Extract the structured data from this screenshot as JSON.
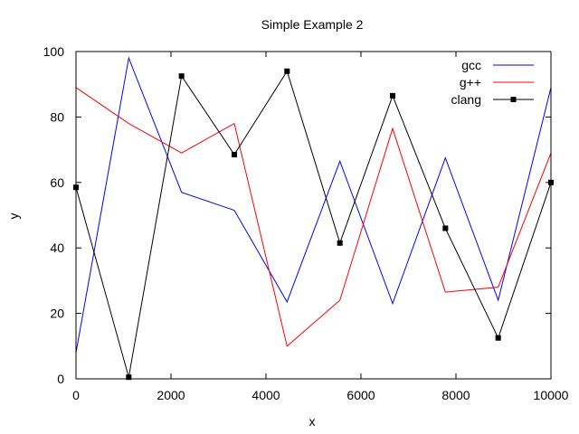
{
  "chart_data": {
    "type": "line",
    "title": "Simple Example 2",
    "xlabel": "x",
    "ylabel": "y",
    "xlim": [
      0,
      10000
    ],
    "ylim": [
      0,
      100
    ],
    "xticks": [
      0,
      2000,
      4000,
      6000,
      8000,
      10000
    ],
    "yticks": [
      0,
      20,
      40,
      60,
      80,
      100
    ],
    "grid": false,
    "legend_position": "top-right",
    "x": [
      0,
      1111,
      2222,
      3333,
      4444,
      5556,
      6667,
      7778,
      8889,
      10000
    ],
    "series": [
      {
        "name": "gcc",
        "color": "#0000ff",
        "marker": "none",
        "values": [
          8,
          98,
          57,
          51.5,
          23.5,
          66.5,
          23,
          67.5,
          24,
          89
        ]
      },
      {
        "name": "g++",
        "color": "#ff0000",
        "marker": "none",
        "values": [
          89,
          78,
          69,
          78,
          10,
          24,
          76.5,
          26.5,
          28,
          69
        ]
      },
      {
        "name": "clang",
        "color": "#000000",
        "marker": "square",
        "values": [
          58.5,
          0.5,
          92.5,
          68.5,
          94,
          41.5,
          86.5,
          46,
          12.5,
          60
        ]
      }
    ]
  }
}
